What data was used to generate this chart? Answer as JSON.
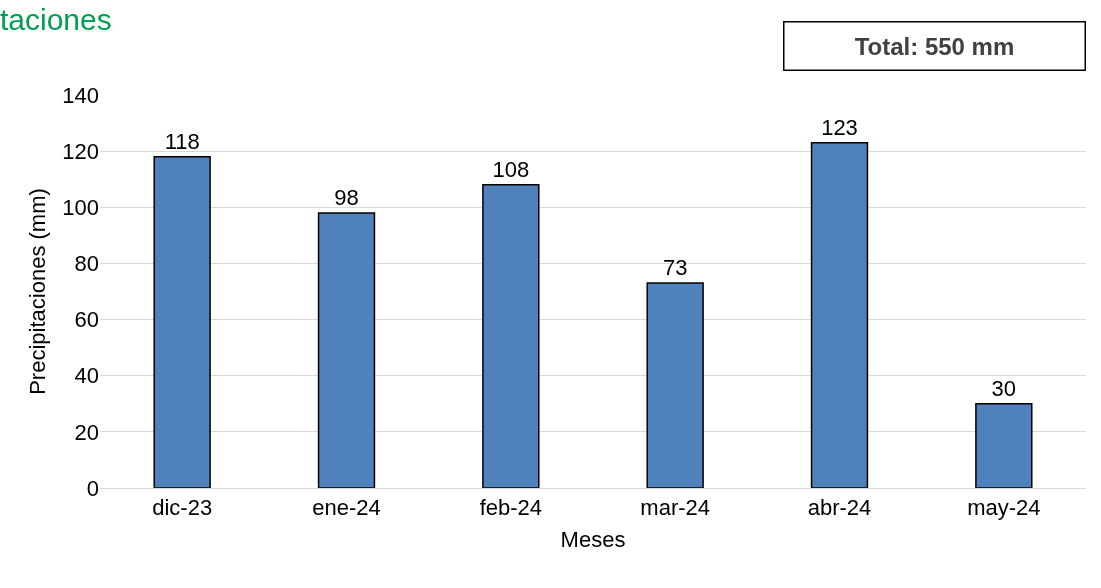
{
  "chart_data": {
    "type": "bar",
    "title": "taciones",
    "xlabel": "Meses",
    "ylabel": "Precipitaciones (mm)",
    "categories": [
      "dic-23",
      "ene-24",
      "feb-24",
      "mar-24",
      "abr-24",
      "may-24"
    ],
    "values": [
      118,
      98,
      108,
      73,
      123,
      30
    ],
    "color": "#4f81bd",
    "ylim": [
      0,
      140
    ],
    "yticks": [
      0,
      20,
      40,
      60,
      80,
      100,
      120,
      140
    ],
    "grid": "y",
    "data_labels": true,
    "legend": false,
    "annotations": [
      "Total: 550 mm"
    ]
  }
}
